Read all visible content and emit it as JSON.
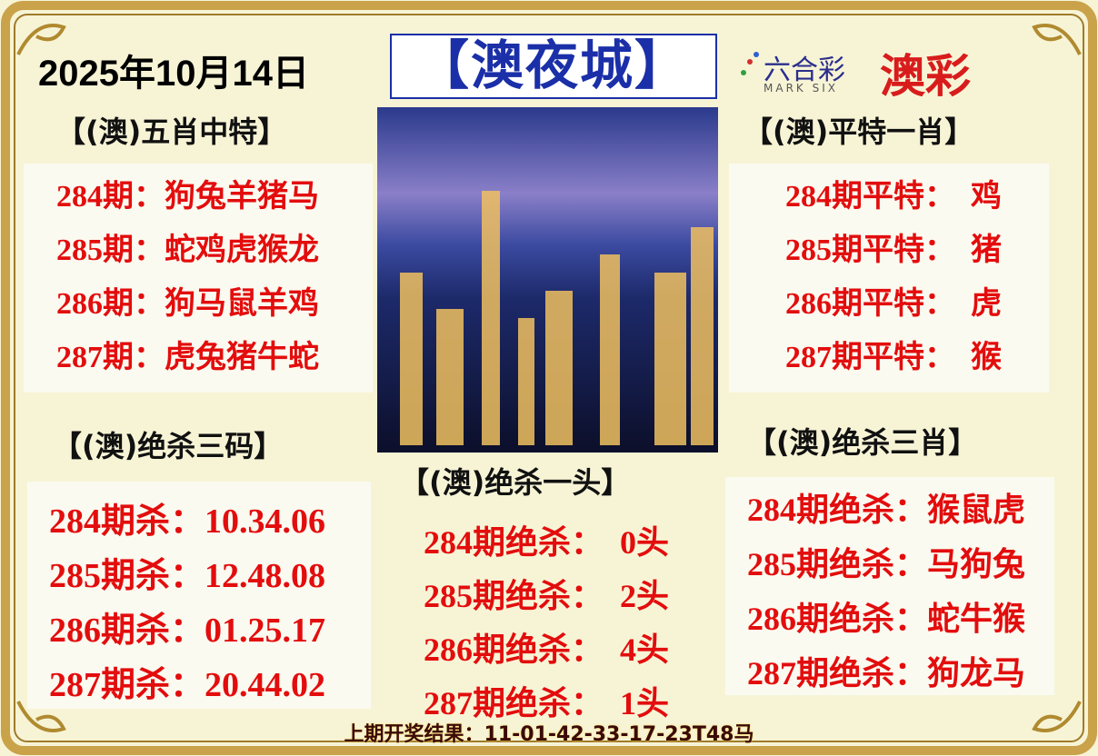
{
  "header": {
    "date": "2025年10月14日",
    "title": "【澳夜城】",
    "logo_main": "六合彩",
    "logo_sub": "MARK SIX",
    "brand": "澳彩"
  },
  "panels": [
    {
      "title": "【(澳)五肖中特】",
      "rows": [
        "284期：狗兔羊猪马",
        "285期：蛇鸡虎猴龙",
        "286期：狗马鼠羊鸡",
        "287期：虎兔猪牛蛇"
      ]
    },
    {
      "title": "【(澳)平特一肖】",
      "rows": [
        "284期平特：  鸡",
        "285期平特：  猪",
        "286期平特：  虎",
        "287期平特：  猴"
      ]
    },
    {
      "title": "【(澳)绝杀三码】",
      "rows": [
        "284期杀：10.34.06",
        "285期杀：12.48.08",
        "286期杀：01.25.17",
        "287期杀：20.44.02"
      ]
    },
    {
      "title": "【(澳)绝杀一头】",
      "rows": [
        "284期绝杀：  0头",
        "285期绝杀：  2头",
        "286期绝杀：  4头",
        "287期绝杀：  1头"
      ]
    },
    {
      "title": "【(澳)绝杀三肖】",
      "rows": [
        "284期绝杀：猴鼠虎",
        "285期绝杀：马狗兔",
        "286期绝杀：蛇牛猴",
        "287期绝杀：狗龙马"
      ]
    }
  ],
  "footer": "上期开奖结果：11-01-42-33-17-23T48马"
}
